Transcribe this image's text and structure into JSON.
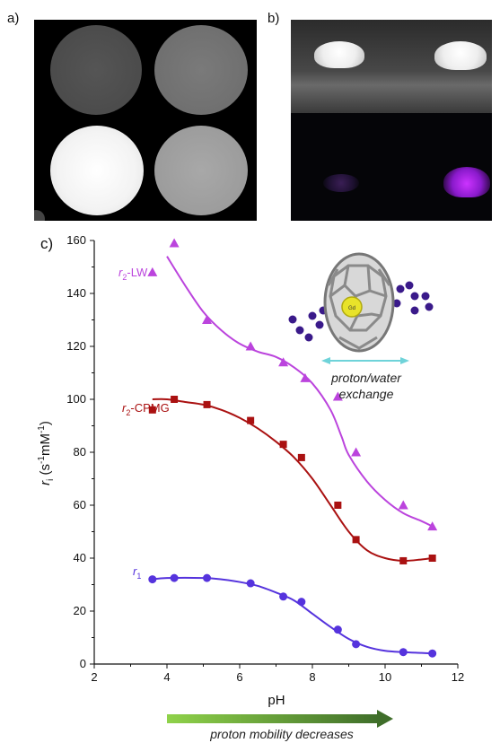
{
  "panels": {
    "a": "a)",
    "b": "b)",
    "c": "c)"
  },
  "inset": {
    "line1": "proton/water",
    "line2": "exchange",
    "atom_label": "Gd"
  },
  "bottom_note": "proton mobility decreases",
  "colors": {
    "r1": "#5533dd",
    "r2_cpmg": "#aa1111",
    "r2_lw": "#bb44dd",
    "arrow": "#3a9d3a",
    "inset_dots": "#3a1a8a",
    "exchange_arrow": "#6fd3d9"
  },
  "chart_data": {
    "type": "scatter",
    "xlabel": "pH",
    "ylabel_main": "r",
    "ylabel_sub": "i",
    "ylabel_units_pre": " (s",
    "ylabel_units_sup1": "-1",
    "ylabel_units_mid": "mM",
    "ylabel_units_sup2": "-1",
    "ylabel_units_post": ")",
    "xlim": [
      2,
      12
    ],
    "ylim": [
      0,
      160
    ],
    "xticks": [
      "2",
      "4",
      "6",
      "8",
      "10",
      "12"
    ],
    "yticks": [
      "0",
      "20",
      "40",
      "60",
      "80",
      "100",
      "120",
      "140",
      "160"
    ],
    "series": [
      {
        "name_main": "r",
        "name_sub": "2",
        "name_rest": "-LW",
        "marker": "triangle",
        "x": [
          3.6,
          4.2,
          5.1,
          6.3,
          7.2,
          7.8,
          8.7,
          9.2,
          10.5,
          11.3
        ],
        "y": [
          148,
          159,
          130,
          120,
          114,
          108,
          101,
          80,
          60,
          52
        ],
        "fit": [
          [
            4.0,
            154
          ],
          [
            4.5,
            143
          ],
          [
            5.0,
            133
          ],
          [
            5.5,
            126
          ],
          [
            6.0,
            121
          ],
          [
            6.5,
            118
          ],
          [
            7.0,
            116
          ],
          [
            7.5,
            112
          ],
          [
            8.0,
            106
          ],
          [
            8.5,
            96
          ],
          [
            8.8,
            86
          ],
          [
            9.0,
            79
          ],
          [
            9.5,
            69
          ],
          [
            10.0,
            62
          ],
          [
            10.5,
            57
          ],
          [
            11.0,
            54
          ],
          [
            11.3,
            52
          ]
        ]
      },
      {
        "name_main": "r",
        "name_sub": "2",
        "name_rest": "-CPMG",
        "marker": "square",
        "x": [
          3.6,
          4.2,
          5.1,
          6.3,
          7.2,
          7.7,
          8.7,
          9.2,
          10.5,
          11.3
        ],
        "y": [
          96,
          100,
          98,
          92,
          83,
          78,
          60,
          47,
          39,
          40
        ],
        "fit": [
          [
            3.6,
            100
          ],
          [
            4.0,
            100
          ],
          [
            4.5,
            99
          ],
          [
            5.0,
            98
          ],
          [
            5.5,
            96
          ],
          [
            6.0,
            93
          ],
          [
            6.5,
            89
          ],
          [
            7.0,
            84
          ],
          [
            7.5,
            78
          ],
          [
            8.0,
            70
          ],
          [
            8.5,
            60
          ],
          [
            9.0,
            50
          ],
          [
            9.5,
            43
          ],
          [
            10.0,
            40
          ],
          [
            10.5,
            39
          ],
          [
            11.0,
            39.5
          ],
          [
            11.3,
            40
          ]
        ]
      },
      {
        "name_main": "r",
        "name_sub": "1",
        "name_rest": "",
        "marker": "circle",
        "x": [
          3.6,
          4.2,
          5.1,
          6.3,
          7.2,
          7.7,
          8.7,
          9.2,
          10.5,
          11.3
        ],
        "y": [
          32,
          32.5,
          32.5,
          30.5,
          25.5,
          23.5,
          13,
          7.5,
          4.5,
          4
        ],
        "fit": [
          [
            3.6,
            32
          ],
          [
            4.0,
            32.5
          ],
          [
            5.0,
            32.5
          ],
          [
            5.5,
            32
          ],
          [
            6.0,
            31
          ],
          [
            6.5,
            29.5
          ],
          [
            7.0,
            27
          ],
          [
            7.5,
            24
          ],
          [
            8.0,
            19
          ],
          [
            8.5,
            14
          ],
          [
            9.0,
            9.5
          ],
          [
            9.5,
            6.5
          ],
          [
            10.0,
            5
          ],
          [
            10.5,
            4.5
          ],
          [
            11.0,
            4.2
          ],
          [
            11.3,
            4
          ]
        ]
      }
    ]
  }
}
